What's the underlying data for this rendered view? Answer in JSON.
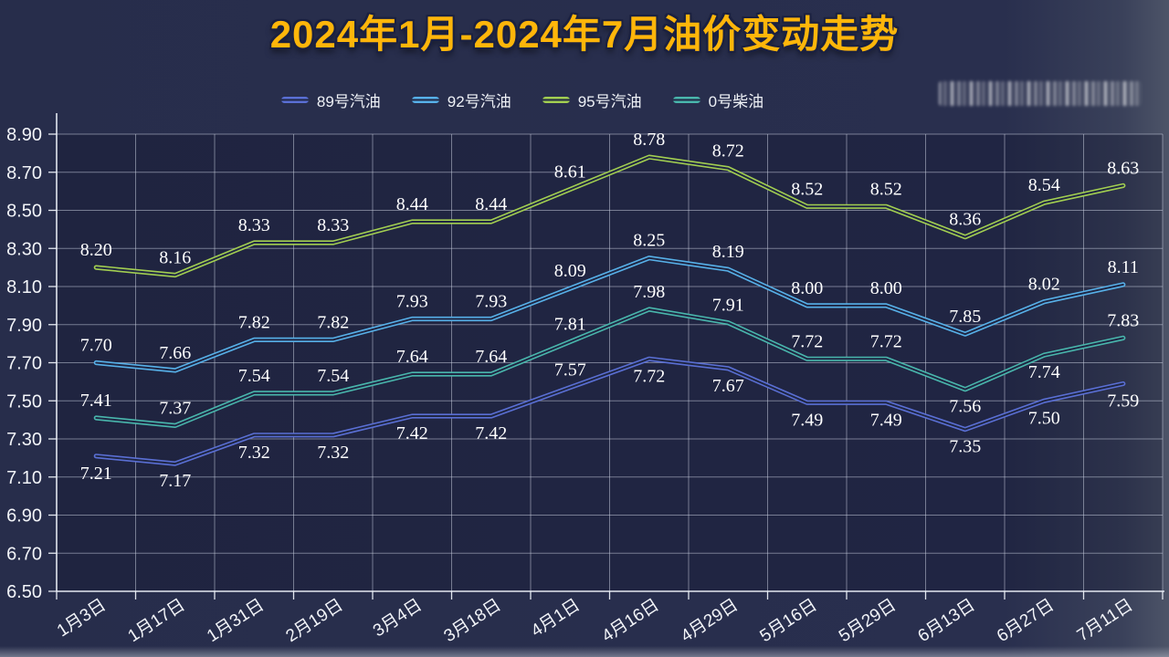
{
  "title": {
    "text": "2024年1月-2024年7月油价变动走势",
    "color": "#ffb60a"
  },
  "legend": {
    "items": [
      {
        "label": "89号汽油",
        "color": "#5a6fd4"
      },
      {
        "label": "92号汽油",
        "color": "#57b0e8"
      },
      {
        "label": "95号汽油",
        "color": "#a2ce51"
      },
      {
        "label": "0号柴油",
        "color": "#49b6ac"
      }
    ]
  },
  "chart_data": {
    "type": "line",
    "title": "2024年1月-2024年7月油价变动走势",
    "xlabel": "",
    "ylabel": "",
    "ylim": [
      6.5,
      8.9
    ],
    "ytick_step": 0.2,
    "yticks": [
      "6.50",
      "6.70",
      "6.90",
      "7.10",
      "7.30",
      "7.50",
      "7.70",
      "7.90",
      "8.10",
      "8.30",
      "8.50",
      "8.70",
      "8.90"
    ],
    "grid": true,
    "legend_position": "top",
    "categories": [
      "1月3日",
      "1月17日",
      "1月31日",
      "2月19日",
      "3月4日",
      "3月18日",
      "4月1日",
      "4月16日",
      "4月29日",
      "5月16日",
      "5月29日",
      "6月13日",
      "6月27日",
      "7月11日"
    ],
    "series": [
      {
        "name": "89号汽油",
        "color": "#5a6fd4",
        "label_side": "below",
        "label_side_overrides": {
          "6": "above"
        },
        "values": [
          7.21,
          7.17,
          7.32,
          7.32,
          7.42,
          7.42,
          7.57,
          7.72,
          7.67,
          7.49,
          7.49,
          7.35,
          7.5,
          7.59
        ]
      },
      {
        "name": "92号汽油",
        "color": "#57b0e8",
        "label_side": "above",
        "label_side_overrides": {},
        "values": [
          7.7,
          7.66,
          7.82,
          7.82,
          7.93,
          7.93,
          8.09,
          8.25,
          8.19,
          8.0,
          8.0,
          7.85,
          8.02,
          8.11
        ]
      },
      {
        "name": "95号汽油",
        "color": "#a2ce51",
        "label_side": "above",
        "label_side_overrides": {},
        "values": [
          8.2,
          8.16,
          8.33,
          8.33,
          8.44,
          8.44,
          8.61,
          8.78,
          8.72,
          8.52,
          8.52,
          8.36,
          8.54,
          8.63
        ]
      },
      {
        "name": "0号柴油",
        "color": "#49b6ac",
        "label_side": "above",
        "label_side_overrides": {
          "11": "below",
          "12": "below"
        },
        "values": [
          7.41,
          7.37,
          7.54,
          7.54,
          7.64,
          7.64,
          7.81,
          7.98,
          7.91,
          7.72,
          7.72,
          7.56,
          7.74,
          7.83
        ]
      }
    ]
  }
}
